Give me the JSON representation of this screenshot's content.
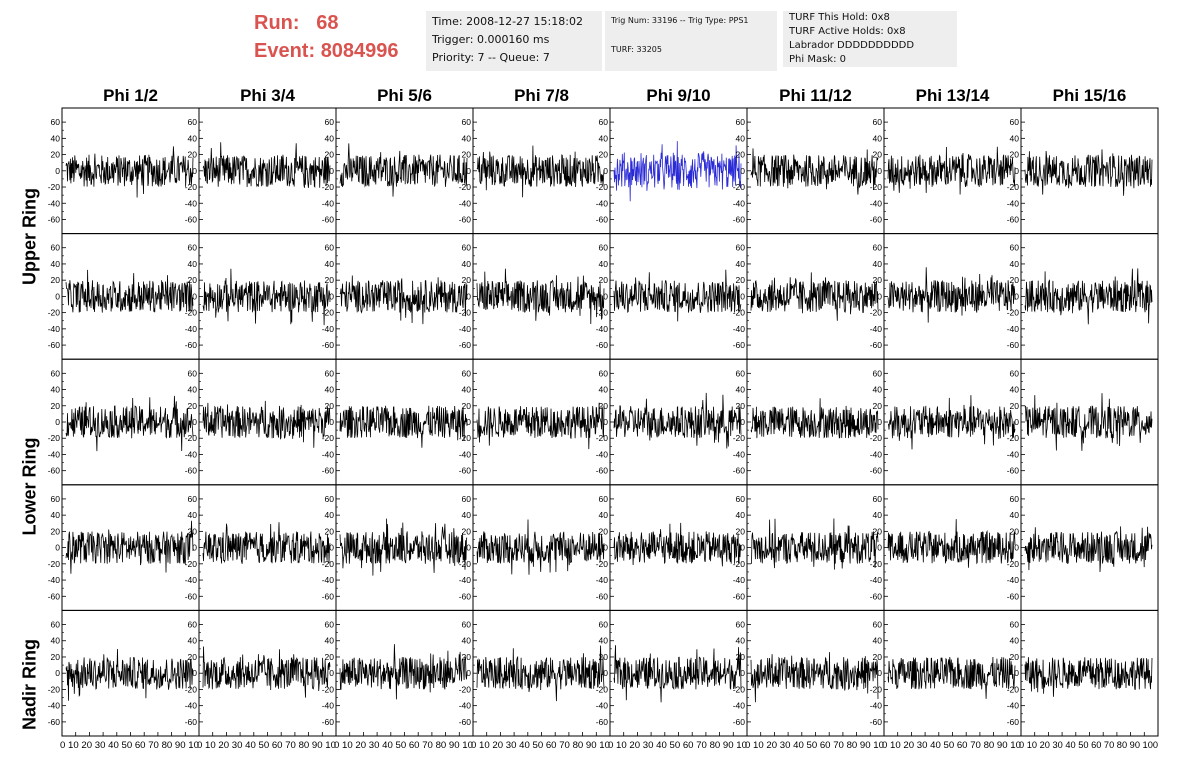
{
  "header": {
    "run_label": "Run:",
    "run_value": "68",
    "event_label": "Event:",
    "event_value": "8084996"
  },
  "info_time": {
    "time": "Time: 2008-12-27 15:18:02",
    "trigger": "Trigger: 0.000160 ms",
    "priority": "Priority: 7 -- Queue: 7"
  },
  "info_trig": {
    "trig": "Trig Num: 33196 -- Trig Type: PPS1",
    "turf": "TURF: 33205"
  },
  "info_turf": {
    "hold": "TURF This Hold: 0x8",
    "active": "TURF Active Holds: 0x8",
    "labrador": "Labrador DDDDDDDDDD",
    "phimask": "Phi Mask: 0"
  },
  "colors": {
    "trace": "#000000",
    "highlight": "#2b2bd6",
    "red_text": "#d9534f"
  },
  "chart_data": {
    "type": "line",
    "columns": [
      "Phi 1/2",
      "Phi 3/4",
      "Phi 5/6",
      "Phi 7/8",
      "Phi 9/10",
      "Phi 11/12",
      "Phi 13/14",
      "Phi 15/16"
    ],
    "ring_labels": [
      "Upper Ring",
      "Lower Ring",
      "Nadir Ring"
    ],
    "rows": 5,
    "y_ticks": [
      "60",
      "40",
      "20",
      "0",
      "-20",
      "-40",
      "-60"
    ],
    "ylim": [
      -70,
      70
    ],
    "xlim": [
      0,
      100
    ],
    "x_tick_text": [
      "0 10 20 30 40 50 60 70 80 90 10",
      "0 10 20 30 40 50 60 70 80 90 10",
      "0 10 20 30 40 50 60 70 80 90 10",
      "0 10 20 30 40 50 60 70 80 90 10",
      "0 10 20 30 40 50 60 70 80 90 10",
      "0 10 20 30 40 50 60 70 80 90 10",
      "0 10 20 30 40 50 60 70 80 90 10",
      "0 10 20 30 40 50 60 70 80 90 100"
    ],
    "highlight_panel": {
      "row": 0,
      "col": 4
    },
    "noise_amplitude": 20,
    "samples": 260
  }
}
